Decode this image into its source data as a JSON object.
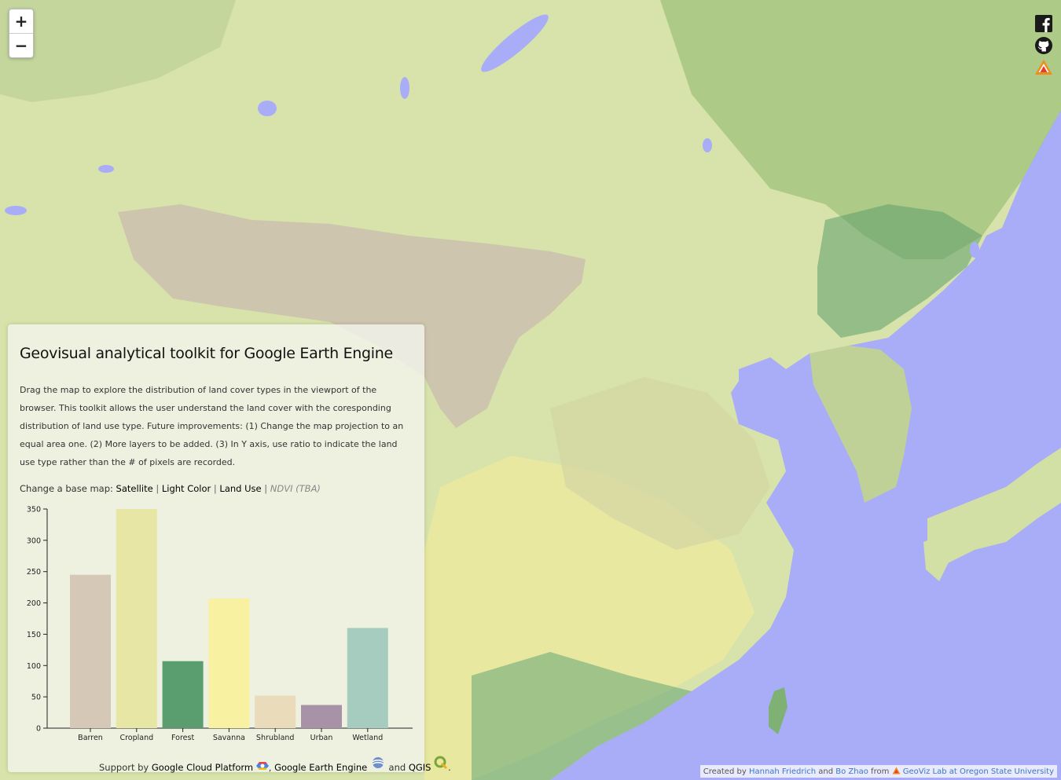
{
  "map": {
    "zoom_in": "+",
    "zoom_out": "−",
    "colors": {
      "water": "#a9adf7",
      "cropland": "#dde4a8",
      "grass": "#d6e3a9",
      "desert": "#cdc4ad",
      "forest": "#5d9e6c",
      "savanna": "#f5ee9b",
      "shrub": "#b7c79a"
    }
  },
  "social": {
    "icons": [
      "facebook-icon",
      "github-icon",
      "geoviz-logo-icon"
    ]
  },
  "panel": {
    "title": "Geovisual analytical toolkit for Google Earth Engine",
    "description": "Drag the map to explore the distribution of land cover types in the viewport of the browser. This toolkit allows the user understand the land cover with the coresponding distribution of land use type. Future improvements: (1) Change the map projection to an equal area one. (2) More layers to be added. (3) In Y axis, use ratio to indicate the land use type rather than the # of pixels are recorded.",
    "basemap_prefix": "Change a base map:",
    "basemaps": [
      "Satellite",
      "Light Color",
      "Land Use"
    ],
    "basemap_tba": "NDVI (TBA)",
    "separator": "|",
    "support_prefix": "Support by",
    "support_links": [
      "Google Cloud Platform",
      "Google Earth Engine",
      "QGIS"
    ],
    "support_and": "and",
    "support_comma": ",",
    "support_end": "."
  },
  "chart_data": {
    "type": "bar",
    "categories": [
      "Barren",
      "Cropland",
      "Forest",
      "Savanna",
      "Shrubland",
      "Urban",
      "Wetland"
    ],
    "values": [
      245,
      350,
      107,
      207,
      52,
      37,
      160
    ],
    "colors": [
      "#d5c8b6",
      "#e7e6a4",
      "#5a9e70",
      "#f8f1a2",
      "#eadcbb",
      "#a892a8",
      "#a6cbbf"
    ],
    "ylim": [
      0,
      350
    ],
    "yticks": [
      0,
      50,
      100,
      150,
      200,
      250,
      300,
      350
    ],
    "title": "",
    "xlabel": "",
    "ylabel": ""
  },
  "credit": {
    "prefix": "Created by",
    "author1": "Hannah Friedrich",
    "and": "and",
    "author2": "Bo Zhao",
    "from": "from",
    "lab": "GeoViz Lab at Oregon State University"
  }
}
